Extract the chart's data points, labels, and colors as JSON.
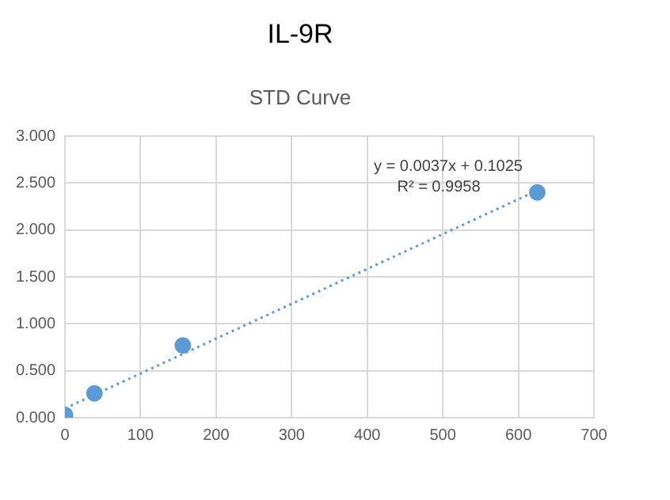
{
  "chart_data": {
    "type": "scatter",
    "title": "IL-9R",
    "subtitle": "STD Curve",
    "series": [
      {
        "color": "#5b9bd5",
        "x": [
          0,
          39,
          156,
          625
        ],
        "values": [
          0.03,
          0.26,
          0.77,
          2.4
        ],
        "marker": "circle"
      },
      {
        "type": "line",
        "color": "#5b9bd5",
        "x": [
          0,
          625
        ],
        "values": [
          0.1,
          2.42
        ],
        "line_style": "dotted",
        "marker": "none"
      }
    ],
    "xlim": [
      0,
      700
    ],
    "xticks": [
      0,
      100,
      200,
      300,
      400,
      500,
      600,
      700
    ],
    "ylim": [
      0,
      3
    ],
    "yticks": [
      {
        "value": 0,
        "label": "0.000"
      },
      {
        "value": 0.5,
        "label": "0.500"
      },
      {
        "value": 1,
        "label": "1.000"
      },
      {
        "value": 1.5,
        "label": "1.500"
      },
      {
        "value": 2,
        "label": "2.000"
      },
      {
        "value": 2.5,
        "label": "2.500"
      },
      {
        "value": 3,
        "label": "3.000"
      }
    ],
    "grid": true,
    "legend": false,
    "annotations": [
      "y = 0.0037x + 0.1025",
      "R² = 0.9958"
    ]
  }
}
